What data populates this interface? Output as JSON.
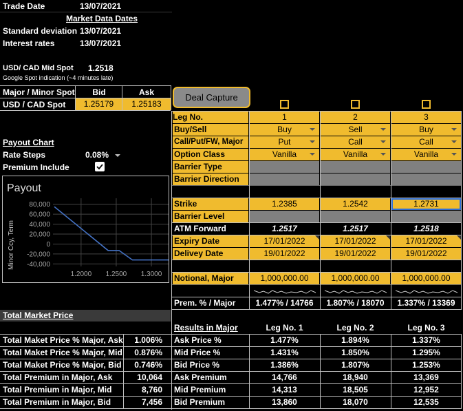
{
  "header": {
    "trade_date_label": "Trade Date",
    "trade_date": "13/07/2021",
    "market_data_dates_label": "Market Data Dates",
    "std_dev_label": "Standard deviation",
    "std_dev_date": "13/07/2021",
    "interest_rates_label": "Interest rates",
    "interest_rates_date": "13/07/2021"
  },
  "spot": {
    "mid_label": "USD/ CAD Mid Spot",
    "mid_value": "1.2518",
    "note": "Google Spot indication (~4 minutes late)",
    "table_header": [
      "Major / Minor Spot",
      "Bid",
      "Ask"
    ],
    "pair": "USD / CAD Spot",
    "bid": "1.25179",
    "ask": "1.25183"
  },
  "deal_capture_label": "Deal Capture",
  "settings": {
    "payout_chart_label": "Payout Chart",
    "rate_steps_label": "Rate Steps",
    "rate_steps_value": "0.08%",
    "premium_include_label": "Premium Include",
    "premium_include_checked": true
  },
  "chart_data": {
    "type": "line",
    "title": "Payout",
    "xlabel": "",
    "ylabel": "Minor Ccy, Term",
    "x_ticks": [
      "1.2000",
      "1.2500",
      "1.3000"
    ],
    "y_ticks": [
      "80,000",
      "60,000",
      "40,000",
      "20,000",
      "0",
      "-20,000",
      "-40,000"
    ],
    "xlim": [
      1.16,
      1.345
    ],
    "ylim": [
      -45000,
      92000
    ],
    "series": [
      {
        "color": "#4472c4",
        "x": [
          1.162,
          1.2385,
          1.2542,
          1.2731,
          1.345
        ],
        "y": [
          75000,
          -13000,
          -13000,
          -32000,
          -32000
        ]
      }
    ],
    "grid": true
  },
  "legs": {
    "row_labels": {
      "leg_no": "Leg No.",
      "buy_sell": "Buy/Sell",
      "call_put": "Call/Put/FW, Major",
      "option_class": "Option Class",
      "barrier_type": "Barrier Type",
      "barrier_direction": "Barrier Direction",
      "strike": "Strike",
      "barrier_level": "Barrier Level",
      "atm_forward": "ATM Forward",
      "expiry_date": "Expiry Date",
      "delivery_date": "Delivey Date",
      "notional": "Notional, Major",
      "prem_major": "Prem. % / Major"
    },
    "columns": [
      {
        "leg": "1",
        "buy_sell": "Buy",
        "call_put": "Put",
        "option_class": "Vanilla",
        "strike": "1.2385",
        "atm_forward": "1.2517",
        "expiry": "17/01/2022",
        "delivery": "19/01/2022",
        "notional": "1,000,000.00",
        "prem": "1.477% / 14766"
      },
      {
        "leg": "2",
        "buy_sell": "Sell",
        "call_put": "Call",
        "option_class": "Vanilla",
        "strike": "1.2542",
        "atm_forward": "1.2517",
        "expiry": "17/01/2022",
        "delivery": "19/01/2022",
        "notional": "1,000,000.00",
        "prem": "1.807% / 18070"
      },
      {
        "leg": "3",
        "buy_sell": "Buy",
        "call_put": "Call",
        "option_class": "Vanilla",
        "strike": "1.2731",
        "atm_forward": "1.2518",
        "expiry": "17/01/2022",
        "delivery": "19/01/2022",
        "notional": "1,000,000.00",
        "prem": "1.337% / 13369"
      }
    ]
  },
  "total_market": {
    "title": "Total Market Price",
    "rows": [
      {
        "label": "Total Maket Price % Major, Ask",
        "value": "1.006%"
      },
      {
        "label": "Total Maket Price % Major, Mid",
        "value": "0.876%"
      },
      {
        "label": "Total Maket Price % Major, Bid",
        "value": "0.746%"
      },
      {
        "label": "Total Premium in Major, Ask",
        "value": "10,064"
      },
      {
        "label": "Total Premium in Major, Mid",
        "value": "8,760"
      },
      {
        "label": "Total Premium in Major, Bid",
        "value": "7,456"
      }
    ]
  },
  "results": {
    "title": "Results in Major",
    "headers": [
      "Leg No. 1",
      "Leg No. 2",
      "Leg No. 3"
    ],
    "rows": [
      {
        "label": "Ask Price %",
        "values": [
          "1.477%",
          "1.894%",
          "1.337%"
        ]
      },
      {
        "label": "Mid Price %",
        "values": [
          "1.431%",
          "1.850%",
          "1.295%"
        ]
      },
      {
        "label": "Bid Price %",
        "values": [
          "1.386%",
          "1.807%",
          "1.253%"
        ]
      },
      {
        "label": "Ask Premium",
        "values": [
          "14,766",
          "18,940",
          "13,369"
        ]
      },
      {
        "label": "Mid Premium",
        "values": [
          "14,313",
          "18,505",
          "12,952"
        ]
      },
      {
        "label": "Bid Premium",
        "values": [
          "13,860",
          "18,070",
          "12,535"
        ]
      }
    ]
  }
}
